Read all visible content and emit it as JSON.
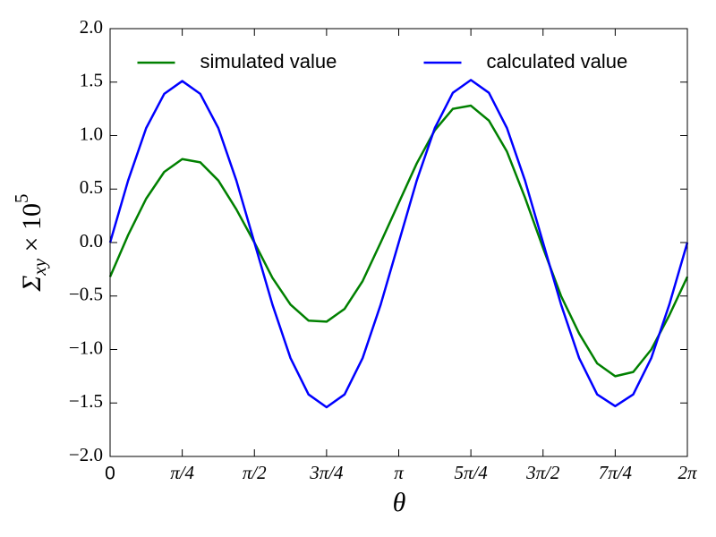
{
  "chart_data": {
    "type": "line",
    "xlabel": "θ",
    "ylabel": {
      "symbol": "Σ",
      "subscript": "xy",
      "times": " × 10",
      "superscript": "5"
    },
    "x": [
      0,
      0.1963,
      0.3927,
      0.589,
      0.7854,
      0.9817,
      1.1781,
      1.3744,
      1.5708,
      1.7671,
      1.9635,
      2.1598,
      2.3562,
      2.5525,
      2.7489,
      2.9452,
      3.1416,
      3.3379,
      3.5343,
      3.7306,
      3.927,
      4.1233,
      4.3197,
      4.516,
      4.7124,
      4.9087,
      5.1051,
      5.3014,
      5.4978,
      5.6941,
      5.8905,
      6.0868,
      6.2832
    ],
    "series": [
      {
        "name": "simulated value",
        "color": "#008000",
        "values": [
          -0.32,
          0.07,
          0.41,
          0.66,
          0.78,
          0.75,
          0.58,
          0.31,
          0.0,
          -0.33,
          -0.58,
          -0.73,
          -0.74,
          -0.62,
          -0.36,
          0.0,
          0.37,
          0.74,
          1.05,
          1.25,
          1.28,
          1.14,
          0.85,
          0.42,
          -0.05,
          -0.5,
          -0.85,
          -1.13,
          -1.25,
          -1.21,
          -1.0,
          -0.68,
          -0.32
        ]
      },
      {
        "name": "calculated value",
        "color": "#0000ff",
        "values": [
          0,
          0.58,
          1.07,
          1.39,
          1.51,
          1.39,
          1.07,
          0.58,
          0,
          -0.58,
          -1.08,
          -1.42,
          -1.54,
          -1.42,
          -1.08,
          -0.58,
          0,
          0.58,
          1.07,
          1.4,
          1.52,
          1.4,
          1.07,
          0.58,
          0,
          -0.58,
          -1.08,
          -1.42,
          -1.53,
          -1.42,
          -1.08,
          -0.58,
          0
        ]
      }
    ],
    "xlim": [
      0,
      6.2832
    ],
    "xticks": [
      0,
      {
        "value": 0.7854,
        "label": "π/4"
      },
      {
        "value": 1.5708,
        "label": "π/2"
      },
      {
        "value": 2.3562,
        "label": "3π/4"
      },
      {
        "value": 3.1416,
        "label": "π"
      },
      {
        "value": 3.927,
        "label": "5π/4"
      },
      {
        "value": 4.7124,
        "label": "3π/2"
      },
      {
        "value": 5.4978,
        "label": "7π/4"
      },
      {
        "value": 6.2832,
        "label": "2π"
      }
    ],
    "ylim": [
      -2.0,
      2.0
    ],
    "yticks": [
      {
        "value": -2.0,
        "label": "−2.0"
      },
      {
        "value": -1.5,
        "label": "−1.5"
      },
      {
        "value": -1.0,
        "label": "−1.0"
      },
      {
        "value": -0.5,
        "label": "−0.5"
      },
      {
        "value": 0.0,
        "label": "0.0"
      },
      {
        "value": 0.5,
        "label": "0.5"
      },
      {
        "value": 1.0,
        "label": "1.0"
      },
      {
        "value": 1.5,
        "label": "1.5"
      },
      {
        "value": 2.0,
        "label": "2.0"
      }
    ],
    "grid": false,
    "legend": "upper center"
  }
}
